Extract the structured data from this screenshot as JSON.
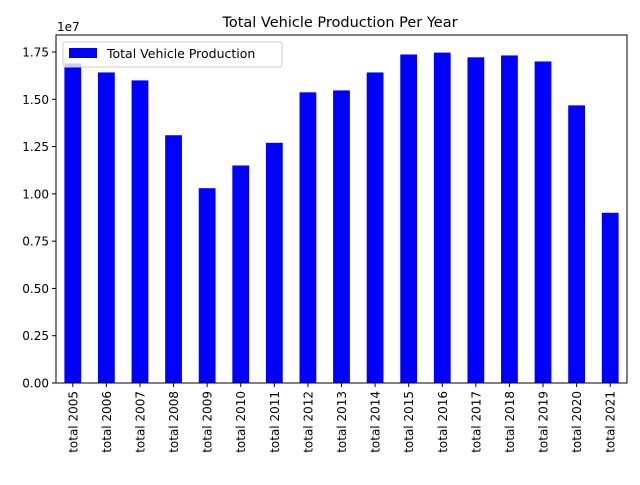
{
  "chart_data": {
    "type": "bar",
    "title": "Total Vehicle Production Per Year",
    "xlabel": "",
    "ylabel": "",
    "y_multiplier_label": "1e7",
    "categories": [
      "total 2005",
      "total 2006",
      "total 2007",
      "total 2008",
      "total 2009",
      "total 2010",
      "total 2011",
      "total 2012",
      "total 2013",
      "total 2014",
      "total 2015",
      "total 2016",
      "total 2017",
      "total 2018",
      "total 2019",
      "total 2020",
      "total 2021"
    ],
    "series": [
      {
        "name": "Total Vehicle Production",
        "color": "#0000ff",
        "values": [
          16900000,
          16420000,
          16000000,
          13100000,
          10300000,
          11500000,
          12700000,
          15370000,
          15470000,
          16420000,
          17370000,
          17470000,
          17220000,
          17320000,
          17000000,
          14680000,
          9000000
        ]
      }
    ],
    "ylim": [
      0,
      18400000
    ],
    "yticks": [
      0,
      2500000,
      5000000,
      7500000,
      10000000,
      12500000,
      15000000,
      17500000
    ],
    "ytick_labels": [
      "0.00",
      "0.25",
      "0.50",
      "0.75",
      "1.00",
      "1.25",
      "1.50",
      "1.75"
    ],
    "legend_position": "top-left",
    "grid": false
  }
}
